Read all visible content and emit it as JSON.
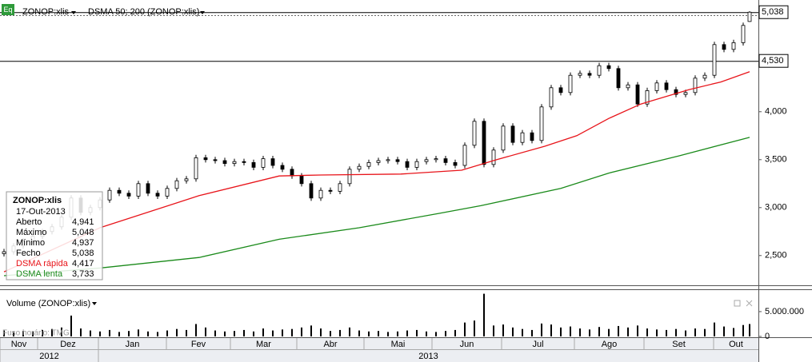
{
  "chart_data": {
    "type": "candlestick",
    "symbol": "ZONOP:xlis",
    "indicator": "DSMA 50; 200 (ZONOP:xlis)",
    "volume_title": "Volume (ZONOP:xlis)",
    "timezone": "Fuso horário: TMG",
    "up_color": "#ffffff",
    "down_color": "#000000",
    "xlim": [
      -1.25,
      235.75
    ],
    "ylim": [
      2.19,
      5.165
    ],
    "yticks": [
      {
        "value": 2.5,
        "label": "2,500"
      },
      {
        "value": 3,
        "label": "3,000"
      },
      {
        "value": 3.5,
        "label": "3,500"
      },
      {
        "value": 4,
        "label": "4,000"
      }
    ],
    "price_markers": [
      {
        "value": 4.53,
        "label": "4,530"
      },
      {
        "value": 5.038,
        "label": "5,038"
      }
    ],
    "months": [
      {
        "value": -1.25,
        "label": "Nov"
      },
      {
        "value": 10.5,
        "label": "Dez"
      },
      {
        "value": 29.5,
        "label": "Jan"
      },
      {
        "value": 50.75,
        "label": "Fev"
      },
      {
        "value": 70.75,
        "label": "Mar"
      },
      {
        "value": 91.5,
        "label": "Abr"
      },
      {
        "value": 112.5,
        "label": "Mai"
      },
      {
        "value": 133.75,
        "label": "Jun"
      },
      {
        "value": 155.5,
        "label": "Jul"
      },
      {
        "value": 178.25,
        "label": "Ago"
      },
      {
        "value": 200,
        "label": "Set"
      },
      {
        "value": 221.75,
        "label": "Out"
      }
    ],
    "years": [
      {
        "value": -1.25,
        "label": "2012"
      },
      {
        "value": 29.5,
        "label": "2013"
      }
    ],
    "x": [
      0,
      3,
      6,
      9,
      12,
      15,
      18,
      21,
      24,
      27,
      30,
      33,
      36,
      39,
      42,
      45,
      48,
      51,
      54,
      57,
      60,
      63,
      66,
      69,
      72,
      75,
      78,
      81,
      84,
      87,
      90,
      93,
      96,
      99,
      102,
      105,
      108,
      111,
      114,
      117,
      120,
      123,
      126,
      129,
      132,
      135,
      138,
      141,
      144,
      147,
      150,
      153,
      156,
      159,
      162,
      165,
      168,
      171,
      174,
      177,
      180,
      183,
      186,
      189,
      192,
      195,
      198,
      201,
      204,
      207,
      210,
      213,
      216,
      219,
      222,
      225,
      228,
      231,
      233
    ],
    "open": [
      2.52,
      2.54,
      2.6,
      2.65,
      2.7,
      2.75,
      2.8,
      2.9,
      3.1,
      2.95,
      3.0,
      3.08,
      3.18,
      3.15,
      3.12,
      3.25,
      3.15,
      3.12,
      3.2,
      3.28,
      3.3,
      3.52,
      3.5,
      3.49,
      3.46,
      3.48,
      3.47,
      3.42,
      3.51,
      3.44,
      3.4,
      3.33,
      3.25,
      3.1,
      3.18,
      3.17,
      3.25,
      3.4,
      3.43,
      3.47,
      3.49,
      3.5,
      3.48,
      3.42,
      3.48,
      3.5,
      3.51,
      3.47,
      3.44,
      3.65,
      3.9,
      3.45,
      3.6,
      3.85,
      3.68,
      3.78,
      3.7,
      4.05,
      4.25,
      4.2,
      4.38,
      4.4,
      4.38,
      4.48,
      4.45,
      4.25,
      4.28,
      4.08,
      4.22,
      4.3,
      4.23,
      4.18,
      4.2,
      4.35,
      4.38,
      4.7,
      4.65,
      4.72,
      4.941
    ],
    "high": [
      2.57,
      2.63,
      2.68,
      2.73,
      2.78,
      2.83,
      2.93,
      3.13,
      3.13,
      3.03,
      3.11,
      3.21,
      3.21,
      3.18,
      3.28,
      3.28,
      3.18,
      3.23,
      3.31,
      3.33,
      3.55,
      3.55,
      3.53,
      3.52,
      3.51,
      3.51,
      3.5,
      3.54,
      3.54,
      3.47,
      3.43,
      3.36,
      3.28,
      3.21,
      3.21,
      3.28,
      3.43,
      3.46,
      3.5,
      3.52,
      3.53,
      3.53,
      3.51,
      3.51,
      3.53,
      3.54,
      3.54,
      3.5,
      3.68,
      3.93,
      3.93,
      3.63,
      3.88,
      3.88,
      3.81,
      3.81,
      4.08,
      4.28,
      4.28,
      4.41,
      4.43,
      4.43,
      4.51,
      4.51,
      4.48,
      4.31,
      4.31,
      4.25,
      4.33,
      4.33,
      4.26,
      4.23,
      4.38,
      4.41,
      4.73,
      4.73,
      4.75,
      4.93,
      5.048
    ],
    "low": [
      2.49,
      2.51,
      2.57,
      2.62,
      2.67,
      2.72,
      2.77,
      2.87,
      2.92,
      2.92,
      2.97,
      3.05,
      3.12,
      3.09,
      3.09,
      3.12,
      3.09,
      3.09,
      3.17,
      3.25,
      3.27,
      3.47,
      3.46,
      3.43,
      3.43,
      3.44,
      3.39,
      3.39,
      3.41,
      3.37,
      3.3,
      3.22,
      3.07,
      3.07,
      3.14,
      3.14,
      3.22,
      3.37,
      3.4,
      3.44,
      3.46,
      3.45,
      3.39,
      3.39,
      3.45,
      3.47,
      3.44,
      3.41,
      3.41,
      3.62,
      3.42,
      3.42,
      3.57,
      3.65,
      3.65,
      3.67,
      3.67,
      4.02,
      4.17,
      4.17,
      4.35,
      4.35,
      4.35,
      4.42,
      4.22,
      4.22,
      4.05,
      4.05,
      4.19,
      4.2,
      4.15,
      4.15,
      4.17,
      4.32,
      4.35,
      4.62,
      4.62,
      4.69,
      4.937
    ],
    "close": [
      2.54,
      2.6,
      2.65,
      2.7,
      2.75,
      2.8,
      2.9,
      3.1,
      2.95,
      3.0,
      3.08,
      3.18,
      3.15,
      3.12,
      3.25,
      3.15,
      3.12,
      3.2,
      3.28,
      3.3,
      3.52,
      3.5,
      3.49,
      3.46,
      3.48,
      3.47,
      3.42,
      3.51,
      3.44,
      3.4,
      3.33,
      3.25,
      3.1,
      3.18,
      3.17,
      3.25,
      3.4,
      3.43,
      3.47,
      3.49,
      3.5,
      3.48,
      3.42,
      3.48,
      3.5,
      3.51,
      3.47,
      3.44,
      3.65,
      3.9,
      3.45,
      3.6,
      3.85,
      3.68,
      3.78,
      3.7,
      4.05,
      4.25,
      4.2,
      4.38,
      4.4,
      4.38,
      4.48,
      4.45,
      4.25,
      4.28,
      4.08,
      4.22,
      4.3,
      4.23,
      4.18,
      4.2,
      4.35,
      4.38,
      4.7,
      4.65,
      4.72,
      4.9,
      5.038
    ],
    "volume": [
      1200000,
      900000,
      1100000,
      1000000,
      1300000,
      1500000,
      1800000,
      4200000,
      1600000,
      1200000,
      1000000,
      1300000,
      900000,
      1100000,
      1400000,
      1000000,
      900000,
      1200000,
      1500000,
      1300000,
      2500000,
      1800000,
      1200000,
      1000000,
      1100000,
      1300000,
      1000000,
      1600000,
      1200000,
      1400000,
      1500000,
      1800000,
      2200000,
      1600000,
      1100000,
      1300000,
      1800000,
      1200000,
      1000000,
      1100000,
      900000,
      1000000,
      1200000,
      1300000,
      1000000,
      900000,
      1100000,
      1300000,
      2800000,
      3200000,
      8600000,
      2200000,
      2400000,
      1800000,
      1500000,
      1300000,
      2600000,
      2400000,
      1800000,
      2000000,
      1600000,
      1400000,
      1900000,
      1500000,
      2100000,
      1800000,
      2200000,
      1600000,
      1400000,
      1300000,
      1500000,
      1200000,
      1600000,
      1500000,
      2800000,
      2000000,
      1700000,
      2300000,
      2500000
    ],
    "volume_color": "#000000",
    "volume_ylim": [
      0,
      9500000
    ],
    "volume_yticks": [
      0,
      {
        "value": 5000000,
        "label": "5.000.000"
      }
    ],
    "series": [
      {
        "name": "DSMA rápida",
        "color": "#e8141a",
        "current_label": "4,417",
        "x": [
          0,
          30,
          61,
          86,
          99,
          124,
          143,
          154,
          169,
          179,
          189,
          199,
          214,
          224,
          233
        ],
        "values": [
          2.33,
          2.79,
          3.125,
          3.33,
          3.34,
          3.35,
          3.39,
          3.5,
          3.64,
          3.75,
          3.93,
          4.08,
          4.23,
          4.31,
          4.417
        ]
      },
      {
        "name": "DSMA lenta",
        "color": "#1a8a1a",
        "current_label": "3,733",
        "x": [
          0,
          30,
          61,
          86,
          111,
          136,
          149,
          174,
          189,
          211,
          233
        ],
        "values": [
          2.29,
          2.37,
          2.48,
          2.67,
          2.79,
          2.94,
          3.02,
          3.2,
          3.36,
          3.54,
          3.733
        ]
      }
    ],
    "tooltip": {
      "title": "ZONOP:xlis",
      "date": "17-Out-2013",
      "names": [
        "Aberto",
        "Máximo",
        "Mínimo",
        "Fecho"
      ],
      "value_labels": [
        "4,941",
        "5,048",
        "4,937",
        "5,038"
      ]
    }
  }
}
